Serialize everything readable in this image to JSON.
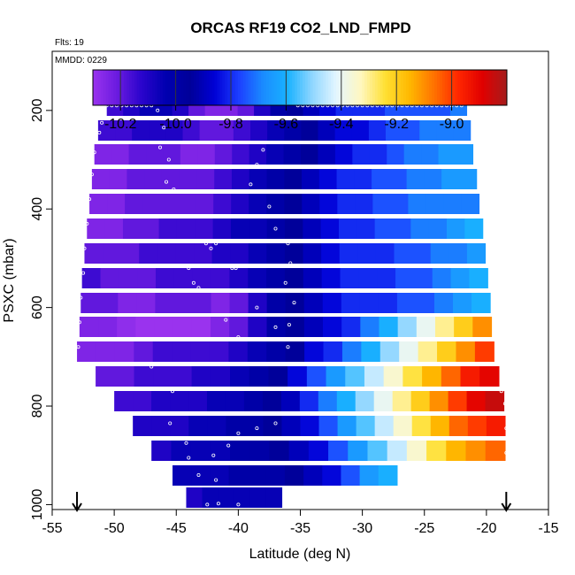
{
  "chart_data": {
    "type": "heatmap",
    "title": "ORCAS RF19 CO2_LND_FMPD",
    "annotations": {
      "flights": "Flts: 19",
      "mmdd": "MMDD: 0229"
    },
    "xlabel": "Latitude (deg N)",
    "ylabel": "PSXC (mbar)",
    "xlim": [
      -55,
      -15
    ],
    "ylim": [
      1010,
      80
    ],
    "y_inverted": true,
    "xticks": [
      -55,
      -50,
      -45,
      -40,
      -35,
      -30,
      -25,
      -20,
      -15
    ],
    "yticks": [
      200,
      400,
      600,
      800,
      1000
    ],
    "colorbar": {
      "range": [
        -10.3,
        -8.8
      ],
      "ticks": [
        -10.2,
        -10.0,
        -9.8,
        -9.6,
        -9.4,
        -9.2,
        -9.0
      ],
      "tick_labels": [
        "-10.2",
        "-10.0",
        "-9.8",
        "-9.6",
        "-9.4",
        "-9.2",
        "-9.0"
      ],
      "colors": [
        "#9a33ee",
        "#6a1be0",
        "#2a04cc",
        "#0000b0",
        "#000099",
        "#0000d6",
        "#1d40ff",
        "#1a8cff",
        "#19b2ff",
        "#8fd6ff",
        "#e4f6ff",
        "#fff7c0",
        "#ffe033",
        "#ffb800",
        "#ff7300",
        "#ff2600",
        "#e00000",
        "#a51c1c"
      ]
    },
    "grid": false,
    "profiles": [
      {
        "p": 190,
        "x0": -50.6,
        "x1": -21.6,
        "v": [
          -10.15,
          -10.1,
          -10.05,
          -10.05,
          -10.1,
          -10.2,
          -10.25,
          -10.25,
          -10.2,
          -10.1,
          -10.0,
          -9.95,
          -9.9,
          -9.85,
          -9.8,
          -9.8,
          -9.8,
          -9.75,
          -9.75,
          -9.75,
          -9.75,
          -9.7
        ]
      },
      {
        "p": 240,
        "x0": -51.3,
        "x1": -21.3,
        "v": [
          -10.15,
          -10.15,
          -10.1,
          -10.1,
          -10.1,
          -10.15,
          -10.2,
          -10.2,
          -10.15,
          -10.1,
          -10.05,
          -10.0,
          -9.95,
          -9.9,
          -9.85,
          -9.85,
          -9.8,
          -9.75,
          -9.75,
          -9.7,
          -9.7,
          -9.7
        ]
      },
      {
        "p": 290,
        "x0": -51.6,
        "x1": -21.1,
        "v": [
          -10.25,
          -10.25,
          -10.2,
          -10.2,
          -10.2,
          -10.25,
          -10.25,
          -10.2,
          -10.15,
          -10.1,
          -10.05,
          -10.0,
          -9.95,
          -9.9,
          -9.85,
          -9.8,
          -9.8,
          -9.75,
          -9.7,
          -9.7,
          -9.65,
          -9.65
        ]
      },
      {
        "p": 340,
        "x0": -51.8,
        "x1": -20.8,
        "v": [
          -10.25,
          -10.25,
          -10.2,
          -10.2,
          -10.2,
          -10.2,
          -10.2,
          -10.15,
          -10.1,
          -10.05,
          -10.0,
          -9.95,
          -9.9,
          -9.85,
          -9.8,
          -9.8,
          -9.75,
          -9.75,
          -9.7,
          -9.7,
          -9.65,
          -9.65
        ]
      },
      {
        "p": 390,
        "x0": -52.0,
        "x1": -20.6,
        "v": [
          -10.25,
          -10.25,
          -10.2,
          -10.2,
          -10.2,
          -10.2,
          -10.2,
          -10.15,
          -10.1,
          -10.05,
          -10.0,
          -9.95,
          -9.9,
          -9.85,
          -9.8,
          -9.8,
          -9.75,
          -9.75,
          -9.7,
          -9.7,
          -9.7,
          -9.7
        ]
      },
      {
        "p": 440,
        "x0": -52.2,
        "x1": -20.3,
        "v": [
          -10.25,
          -10.25,
          -10.2,
          -10.2,
          -10.15,
          -10.15,
          -10.15,
          -10.1,
          -10.05,
          -10.05,
          -10.0,
          -9.95,
          -9.9,
          -9.85,
          -9.8,
          -9.8,
          -9.75,
          -9.75,
          -9.7,
          -9.7,
          -9.65,
          -9.6
        ]
      },
      {
        "p": 490,
        "x0": -52.4,
        "x1": -20.1,
        "v": [
          -10.2,
          -10.2,
          -10.2,
          -10.15,
          -10.15,
          -10.15,
          -10.15,
          -10.1,
          -10.1,
          -10.05,
          -10.0,
          -9.95,
          -9.9,
          -9.85,
          -9.8,
          -9.8,
          -9.8,
          -9.75,
          -9.75,
          -9.7,
          -9.7,
          -9.65
        ]
      },
      {
        "p": 540,
        "x0": -52.6,
        "x1": -19.9,
        "v": [
          -10.15,
          -10.2,
          -10.2,
          -10.2,
          -10.15,
          -10.15,
          -10.15,
          -10.15,
          -10.1,
          -10.05,
          -10.0,
          -9.95,
          -9.9,
          -9.85,
          -9.8,
          -9.8,
          -9.8,
          -9.75,
          -9.75,
          -9.7,
          -9.65,
          -9.6
        ]
      },
      {
        "p": 590,
        "x0": -52.7,
        "x1": -19.7,
        "v": [
          -10.2,
          -10.2,
          -10.25,
          -10.25,
          -10.2,
          -10.2,
          -10.2,
          -10.25,
          -10.2,
          -10.1,
          -10.0,
          -9.95,
          -9.9,
          -9.85,
          -9.8,
          -9.8,
          -9.8,
          -9.75,
          -9.75,
          -9.7,
          -9.65,
          -9.6
        ]
      },
      {
        "p": 640,
        "x0": -52.8,
        "x1": -19.6,
        "v": [
          -10.25,
          -10.25,
          -10.28,
          -10.3,
          -10.3,
          -10.3,
          -10.3,
          -10.25,
          -10.2,
          -10.1,
          -10.0,
          -9.95,
          -9.9,
          -9.85,
          -9.8,
          -9.7,
          -9.6,
          -9.5,
          -9.4,
          -9.3,
          -9.2,
          -9.1
        ]
      },
      {
        "p": 690,
        "x0": -53.0,
        "x1": -19.4,
        "v": [
          -10.25,
          -10.25,
          -10.25,
          -10.2,
          -10.15,
          -10.15,
          -10.15,
          -10.15,
          -10.1,
          -10.05,
          -10.0,
          -9.95,
          -9.85,
          -9.8,
          -9.7,
          -9.6,
          -9.5,
          -9.4,
          -9.3,
          -9.2,
          -9.1,
          -9.0
        ]
      },
      {
        "p": 740,
        "x0": -51.5,
        "x1": -19.0,
        "v": [
          -10.2,
          -10.2,
          -10.15,
          -10.15,
          -10.15,
          -10.1,
          -10.1,
          -10.05,
          -10.0,
          -9.95,
          -9.85,
          -9.75,
          -9.65,
          -9.55,
          -9.45,
          -9.35,
          -9.25,
          -9.15,
          -9.05,
          -8.95,
          -8.9
        ]
      },
      {
        "p": 790,
        "x0": -50.0,
        "x1": -18.6,
        "v": [
          -10.15,
          -10.15,
          -10.1,
          -10.1,
          -10.1,
          -10.05,
          -10.05,
          -10.0,
          -9.95,
          -9.9,
          -9.8,
          -9.7,
          -9.6,
          -9.5,
          -9.4,
          -9.3,
          -9.2,
          -9.1,
          -9.0,
          -8.9,
          -8.85
        ]
      },
      {
        "p": 840,
        "x0": -48.5,
        "x1": -18.5,
        "v": [
          -10.1,
          -10.1,
          -10.1,
          -10.05,
          -10.05,
          -10.0,
          -10.0,
          -9.95,
          -9.9,
          -9.85,
          -9.75,
          -9.65,
          -9.55,
          -9.45,
          -9.35,
          -9.25,
          -9.15,
          -9.05,
          -9.0,
          -8.95
        ]
      },
      {
        "p": 890,
        "x0": -47.0,
        "x1": -18.5,
        "v": [
          -10.1,
          -10.05,
          -10.05,
          -10.05,
          -10.0,
          -10.0,
          -9.95,
          -9.9,
          -9.85,
          -9.75,
          -9.65,
          -9.55,
          -9.45,
          -9.35,
          -9.25,
          -9.15,
          -9.1,
          -9.05
        ]
      },
      {
        "p": 940,
        "x0": -45.3,
        "x1": -27.2,
        "v": [
          -10.05,
          -10.05,
          -10.05,
          -10.0,
          -10.0,
          -10.0,
          -9.95,
          -9.9,
          -9.85,
          -9.75,
          -9.65,
          -9.6
        ]
      },
      {
        "p": 985,
        "x0": -44.2,
        "x1": -36.5,
        "v": [
          -10.1,
          -10.05,
          -10.05,
          -10.05,
          -10.05,
          -10.05
        ]
      }
    ],
    "sample_points": [
      [
        -50.6,
        190
      ],
      [
        -50.2,
        190
      ],
      [
        -49.8,
        190
      ],
      [
        -49.4,
        190
      ],
      [
        -49.0,
        190
      ],
      [
        -48.6,
        190
      ],
      [
        -48.2,
        190
      ],
      [
        -47.8,
        190
      ],
      [
        -47.4,
        190
      ],
      [
        -47.0,
        190
      ],
      [
        -35.2,
        190
      ],
      [
        -34.8,
        190
      ],
      [
        -34.4,
        190
      ],
      [
        -34.0,
        190
      ],
      [
        -33.6,
        190
      ],
      [
        -33.2,
        190
      ],
      [
        -32.8,
        190
      ],
      [
        -32.4,
        190
      ],
      [
        -32.0,
        190
      ],
      [
        -31.6,
        190
      ],
      [
        -31.2,
        190
      ],
      [
        -30.8,
        190
      ],
      [
        -30.4,
        190
      ],
      [
        -30.0,
        190
      ],
      [
        -29.6,
        190
      ],
      [
        -29.2,
        190
      ],
      [
        -28.8,
        190
      ],
      [
        -28.4,
        190
      ],
      [
        -28.0,
        190
      ],
      [
        -27.6,
        190
      ],
      [
        -27.2,
        190
      ],
      [
        -26.8,
        190
      ],
      [
        -26.4,
        190
      ],
      [
        -26.0,
        190
      ],
      [
        -25.6,
        190
      ],
      [
        -25.2,
        190
      ],
      [
        -24.8,
        190
      ],
      [
        -24.4,
        190
      ],
      [
        -24.0,
        190
      ],
      [
        -23.6,
        190
      ],
      [
        -23.2,
        190
      ],
      [
        -22.8,
        190
      ],
      [
        -22.4,
        190
      ],
      [
        -22.0,
        190
      ],
      [
        -51.0,
        225
      ],
      [
        -51.2,
        245
      ],
      [
        -51.6,
        285
      ],
      [
        -51.8,
        330
      ],
      [
        -52.0,
        380
      ],
      [
        -52.2,
        430
      ],
      [
        -52.4,
        480
      ],
      [
        -52.5,
        530
      ],
      [
        -52.7,
        580
      ],
      [
        -52.8,
        630
      ],
      [
        -52.9,
        680
      ],
      [
        -46.5,
        200
      ],
      [
        -46.0,
        235
      ],
      [
        -46.3,
        275
      ],
      [
        -45.6,
        300
      ],
      [
        -45.8,
        345
      ],
      [
        -45.2,
        360
      ],
      [
        -42.6,
        470
      ],
      [
        -42.2,
        480
      ],
      [
        -41.8,
        470
      ],
      [
        -44.0,
        520
      ],
      [
        -43.6,
        550
      ],
      [
        -43.2,
        560
      ],
      [
        -40.5,
        520
      ],
      [
        -40.2,
        520
      ],
      [
        -41.0,
        625
      ],
      [
        -40.0,
        660
      ],
      [
        -38.5,
        600
      ],
      [
        -37.0,
        640
      ],
      [
        -38.0,
        280
      ],
      [
        -38.5,
        310
      ],
      [
        -39.0,
        350
      ],
      [
        -37.5,
        395
      ],
      [
        -37.0,
        440
      ],
      [
        -36.0,
        470
      ],
      [
        -35.8,
        510
      ],
      [
        -36.2,
        550
      ],
      [
        -35.5,
        590
      ],
      [
        -35.9,
        635
      ],
      [
        -36.0,
        680
      ],
      [
        -47.0,
        720
      ],
      [
        -45.3,
        770
      ],
      [
        -45.5,
        835
      ],
      [
        -44.2,
        875
      ],
      [
        -44.0,
        905
      ],
      [
        -43.2,
        940
      ],
      [
        -42.0,
        900
      ],
      [
        -40.8,
        880
      ],
      [
        -40.0,
        855
      ],
      [
        -38.5,
        845
      ],
      [
        -37.0,
        835
      ],
      [
        -41.8,
        950
      ],
      [
        -42.5,
        1000
      ],
      [
        -41.6,
        998
      ],
      [
        -40.0,
        1000
      ],
      [
        -18.8,
        770
      ],
      [
        -18.5,
        795
      ],
      [
        -18.3,
        815
      ],
      [
        -18.4,
        845
      ],
      [
        -18.4,
        895
      ]
    ],
    "arrows_lat": [
      -53.0,
      -18.4
    ]
  }
}
